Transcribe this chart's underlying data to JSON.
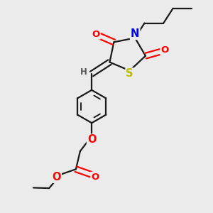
{
  "bg_color": "#ebebeb",
  "bond_color": "#1a1a1a",
  "bond_width": 1.6,
  "atom_colors": {
    "O": "#ff0000",
    "N": "#0000ee",
    "S": "#bbbb00",
    "H": "#555555",
    "C": "#1a1a1a"
  },
  "font_size": 9.5
}
